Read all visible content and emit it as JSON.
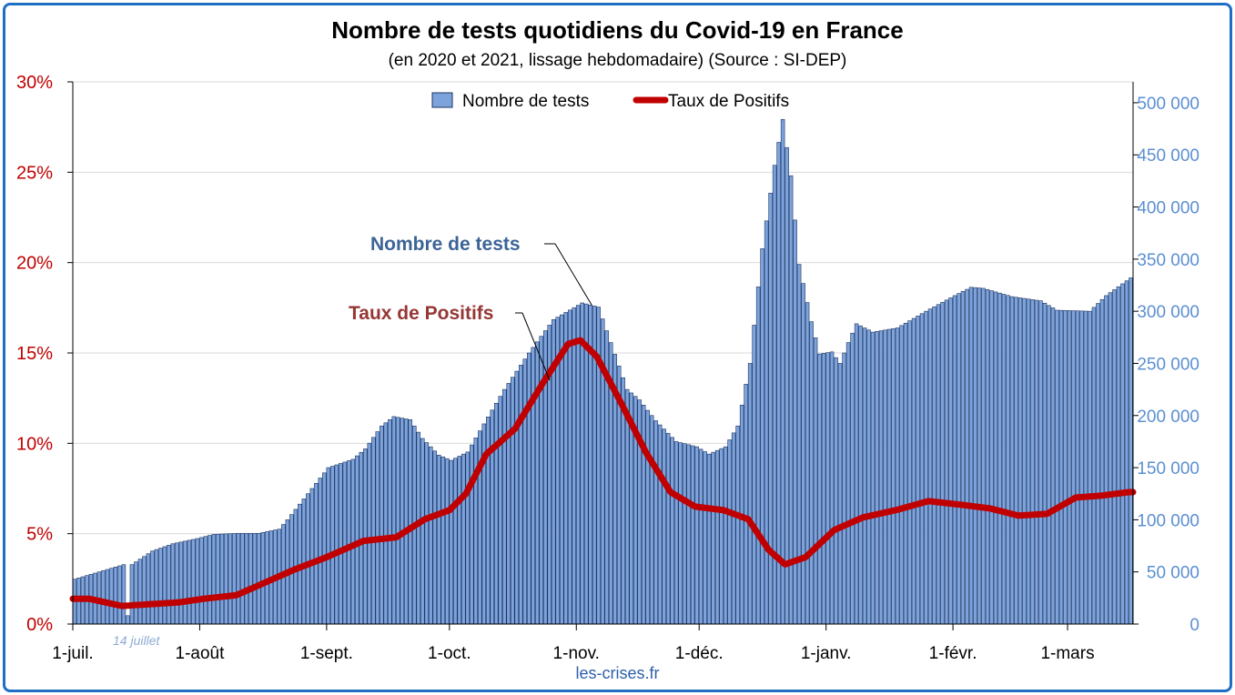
{
  "title": "Nombre de tests quotidiens du Covid-19 en France",
  "subtitle": "(en 2020 et 2021, lissage hebdomadaire) (Source : SI-DEP)",
  "source_credit": "les-crises.fr",
  "colors": {
    "bars": "#7da3dc",
    "bar_outline": "#1c3360",
    "line": "#c00000",
    "left_axis_text": "#c00000",
    "right_axis_text": "#5b8fd1",
    "annotation_tests": "#3c6496",
    "annotation_rate": "#953735",
    "frame": "#1f6fc5"
  },
  "chart_data": {
    "type": "bar",
    "x_start": "2020-07-01",
    "x_tick_labels": [
      "1-juil.",
      "1-août",
      "1-sept.",
      "1-oct.",
      "1-nov.",
      "1-déc.",
      "1-janv.",
      "1-févr.",
      "1-mars"
    ],
    "x_tick_dates": [
      "2020-07-01",
      "2020-08-01",
      "2020-09-01",
      "2020-10-01",
      "2020-11-01",
      "2020-12-01",
      "2021-01-01",
      "2021-02-01",
      "2021-03-01"
    ],
    "left_axis": {
      "ylim": [
        0,
        30
      ],
      "tick_labels": [
        "0%",
        "5%",
        "10%",
        "15%",
        "20%",
        "25%",
        "30%"
      ],
      "tick_values": [
        0,
        5,
        10,
        15,
        20,
        25,
        30
      ]
    },
    "right_axis": {
      "ylim": [
        0,
        520000
      ],
      "tick_labels": [
        "0",
        "50 000",
        "100 000",
        "150 000",
        "200 000",
        "250 000",
        "300 000",
        "350 000",
        "400 000",
        "450 000",
        "500 000"
      ],
      "tick_values": [
        0,
        50000,
        100000,
        150000,
        200000,
        250000,
        300000,
        350000,
        400000,
        450000,
        500000
      ]
    },
    "legend": {
      "placement": "top-center",
      "entries": [
        "Nombre de tests",
        "Taux de Positifs"
      ]
    },
    "annotations": {
      "tests_label": "Nombre de tests",
      "rate_label": "Taux de Positifs",
      "holiday_label": "14 juillet"
    },
    "series": [
      {
        "name": "Nombre de tests",
        "type": "bar",
        "axis": "right",
        "anchors": [
          [
            "2020-07-01",
            43000
          ],
          [
            "2020-07-13",
            57000
          ],
          [
            "2020-07-14",
            8000
          ],
          [
            "2020-07-15",
            57000
          ],
          [
            "2020-07-20",
            70000
          ],
          [
            "2020-07-25",
            77000
          ],
          [
            "2020-07-31",
            82000
          ],
          [
            "2020-08-04",
            86000
          ],
          [
            "2020-08-10",
            87000
          ],
          [
            "2020-08-15",
            87000
          ],
          [
            "2020-08-20",
            91000
          ],
          [
            "2020-08-22",
            100000
          ],
          [
            "2020-08-28",
            130000
          ],
          [
            "2020-09-01",
            150000
          ],
          [
            "2020-09-07",
            158000
          ],
          [
            "2020-09-10",
            168000
          ],
          [
            "2020-09-14",
            190000
          ],
          [
            "2020-09-17",
            199000
          ],
          [
            "2020-09-21",
            196000
          ],
          [
            "2020-09-24",
            178000
          ],
          [
            "2020-09-28",
            162000
          ],
          [
            "2020-10-01",
            157000
          ],
          [
            "2020-10-05",
            165000
          ],
          [
            "2020-10-09",
            192000
          ],
          [
            "2020-10-14",
            225000
          ],
          [
            "2020-10-20",
            260000
          ],
          [
            "2020-10-26",
            292000
          ],
          [
            "2020-11-02",
            308000
          ],
          [
            "2020-11-06",
            304000
          ],
          [
            "2020-11-09",
            270000
          ],
          [
            "2020-11-13",
            225000
          ],
          [
            "2020-11-16",
            215000
          ],
          [
            "2020-11-20",
            195000
          ],
          [
            "2020-11-25",
            175000
          ],
          [
            "2020-11-30",
            170000
          ],
          [
            "2020-12-03",
            163000
          ],
          [
            "2020-12-07",
            170000
          ],
          [
            "2020-12-10",
            190000
          ],
          [
            "2020-12-13",
            250000
          ],
          [
            "2020-12-16",
            360000
          ],
          [
            "2020-12-19",
            440000
          ],
          [
            "2020-12-21",
            484000
          ],
          [
            "2020-12-23",
            430000
          ],
          [
            "2020-12-25",
            345000
          ],
          [
            "2020-12-28",
            290000
          ],
          [
            "2020-12-30",
            259000
          ],
          [
            "2021-01-02",
            261000
          ],
          [
            "2021-01-04",
            250000
          ],
          [
            "2021-01-06",
            270000
          ],
          [
            "2021-01-08",
            288000
          ],
          [
            "2021-01-12",
            280000
          ],
          [
            "2021-01-18",
            284000
          ],
          [
            "2021-01-25",
            300000
          ],
          [
            "2021-02-01",
            315000
          ],
          [
            "2021-02-05",
            323000
          ],
          [
            "2021-02-08",
            322000
          ],
          [
            "2021-02-15",
            314000
          ],
          [
            "2021-02-22",
            310000
          ],
          [
            "2021-02-26",
            301000
          ],
          [
            "2021-03-06",
            300000
          ],
          [
            "2021-03-10",
            315000
          ],
          [
            "2021-03-16",
            332000
          ]
        ]
      },
      {
        "name": "Taux de Positifs",
        "type": "line",
        "axis": "left",
        "anchors": [
          [
            "2020-07-01",
            1.4
          ],
          [
            "2020-07-05",
            1.4
          ],
          [
            "2020-07-13",
            1.0
          ],
          [
            "2020-07-20",
            1.1
          ],
          [
            "2020-07-27",
            1.2
          ],
          [
            "2020-08-02",
            1.4
          ],
          [
            "2020-08-10",
            1.6
          ],
          [
            "2020-08-17",
            2.3
          ],
          [
            "2020-08-24",
            3.0
          ],
          [
            "2020-09-01",
            3.7
          ],
          [
            "2020-09-10",
            4.6
          ],
          [
            "2020-09-18",
            4.8
          ],
          [
            "2020-09-25",
            5.8
          ],
          [
            "2020-10-01",
            6.3
          ],
          [
            "2020-10-05",
            7.2
          ],
          [
            "2020-10-10",
            9.4
          ],
          [
            "2020-10-17",
            10.8
          ],
          [
            "2020-10-24",
            13.4
          ],
          [
            "2020-10-30",
            15.5
          ],
          [
            "2020-11-02",
            15.7
          ],
          [
            "2020-11-06",
            14.8
          ],
          [
            "2020-11-12",
            12.2
          ],
          [
            "2020-11-18",
            9.5
          ],
          [
            "2020-11-24",
            7.3
          ],
          [
            "2020-11-30",
            6.5
          ],
          [
            "2020-12-07",
            6.3
          ],
          [
            "2020-12-13",
            5.8
          ],
          [
            "2020-12-18",
            4.1
          ],
          [
            "2020-12-22",
            3.3
          ],
          [
            "2020-12-27",
            3.7
          ],
          [
            "2021-01-03",
            5.2
          ],
          [
            "2021-01-10",
            5.9
          ],
          [
            "2021-01-18",
            6.3
          ],
          [
            "2021-01-26",
            6.8
          ],
          [
            "2021-02-03",
            6.6
          ],
          [
            "2021-02-10",
            6.4
          ],
          [
            "2021-02-17",
            6.0
          ],
          [
            "2021-02-24",
            6.1
          ],
          [
            "2021-03-03",
            7.0
          ],
          [
            "2021-03-09",
            7.1
          ],
          [
            "2021-03-16",
            7.3
          ]
        ]
      }
    ]
  }
}
